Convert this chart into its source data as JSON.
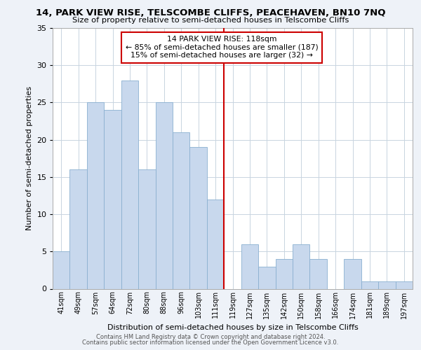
{
  "title": "14, PARK VIEW RISE, TELSCOMBE CLIFFS, PEACEHAVEN, BN10 7NQ",
  "subtitle": "Size of property relative to semi-detached houses in Telscombe Cliffs",
  "xlabel": "Distribution of semi-detached houses by size in Telscombe Cliffs",
  "ylabel": "Number of semi-detached properties",
  "categories": [
    "41sqm",
    "49sqm",
    "57sqm",
    "64sqm",
    "72sqm",
    "80sqm",
    "88sqm",
    "96sqm",
    "103sqm",
    "111sqm",
    "119sqm",
    "127sqm",
    "135sqm",
    "142sqm",
    "150sqm",
    "158sqm",
    "166sqm",
    "174sqm",
    "181sqm",
    "189sqm",
    "197sqm"
  ],
  "values": [
    5,
    16,
    25,
    24,
    28,
    16,
    25,
    21,
    19,
    12,
    0,
    6,
    3,
    4,
    6,
    4,
    0,
    4,
    1,
    1,
    1
  ],
  "bar_color": "#c8d8ed",
  "bar_edge_color": "#8ab0d0",
  "annotation_title": "14 PARK VIEW RISE: 118sqm",
  "annotation_line1": "← 85% of semi-detached houses are smaller (187)",
  "annotation_line2": "15% of semi-detached houses are larger (32) →",
  "annotation_box_color": "#ffffff",
  "annotation_box_edge": "#cc0000",
  "highlight_line_color": "#cc0000",
  "highlight_index": 10,
  "ylim": [
    0,
    35
  ],
  "yticks": [
    0,
    5,
    10,
    15,
    20,
    25,
    30,
    35
  ],
  "footer_line1": "Contains HM Land Registry data © Crown copyright and database right 2024.",
  "footer_line2": "Contains public sector information licensed under the Open Government Licence v3.0.",
  "background_color": "#eef2f8",
  "plot_bg_color": "#ffffff",
  "grid_color": "#c8d4e0"
}
